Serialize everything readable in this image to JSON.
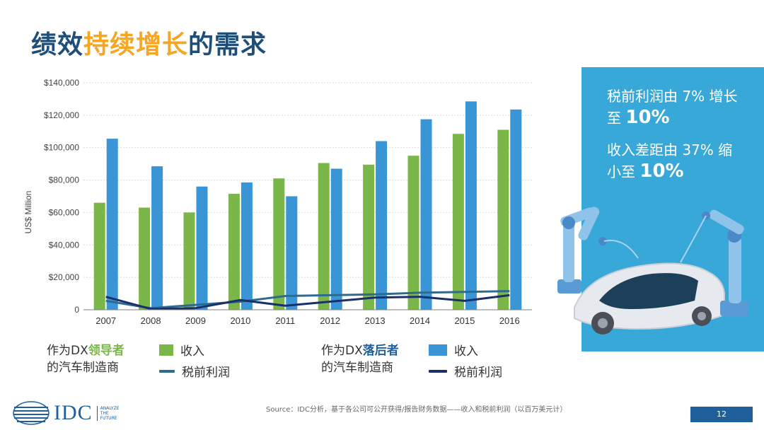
{
  "title": {
    "part1": "绩效",
    "part2": "持续增长",
    "part3": "的需求"
  },
  "chart_data": {
    "type": "bar",
    "ylabel": "US$ Million",
    "ylim": [
      0,
      140000
    ],
    "yticks": [
      "0",
      "$20,000",
      "$40,000",
      "$60,000",
      "$80,000",
      "$100,000",
      "$120,000",
      "$140,000"
    ],
    "categories": [
      "2007",
      "2008",
      "2009",
      "2010",
      "2011",
      "2012",
      "2013",
      "2014",
      "2015",
      "2016"
    ],
    "series": [
      {
        "group": "leader",
        "name": "收入",
        "kind": "bar",
        "color": "#7ab648",
        "values": [
          66000,
          63000,
          60000,
          71500,
          81000,
          90500,
          89500,
          95000,
          108500,
          111000
        ]
      },
      {
        "group": "laggard",
        "name": "收入",
        "kind": "bar",
        "color": "#3a95d6",
        "values": [
          105500,
          88500,
          76000,
          78500,
          70000,
          87000,
          104000,
          117500,
          128500,
          123500
        ]
      },
      {
        "group": "leader",
        "name": "税前利润",
        "kind": "line",
        "color": "#2e6b8e",
        "values": [
          5500,
          1000,
          3000,
          5000,
          8500,
          9000,
          9500,
          10500,
          11000,
          11500
        ]
      },
      {
        "group": "laggard",
        "name": "税前利润",
        "kind": "line",
        "color": "#1a2f6b",
        "values": [
          8000,
          500,
          1000,
          6000,
          2500,
          5000,
          7500,
          8000,
          5500,
          9000
        ]
      }
    ]
  },
  "legend": {
    "leader_label_a": "作为DX",
    "leader_label_b": "领导者",
    "leader_label_c": "的汽车制造商",
    "laggard_label_a": "作为DX",
    "laggard_label_b": "落后者",
    "laggard_label_c": "的汽车制造商",
    "revenue": "收入",
    "profit": "税前利润"
  },
  "panel": {
    "line1": "税前利润由 7% 增长",
    "line1b_prefix": "至 ",
    "line1b_value": "10%",
    "line2": "收入差距由 37% 缩",
    "line2b_prefix": "小至 ",
    "line2b_value": "10%",
    "color": "#37a8d8"
  },
  "footer": {
    "source": "Source：IDC分析，基于各公司可公开获得/报告财务数据——收入和税前利润（以百万美元计）",
    "page": "12",
    "logo": "IDC",
    "tagline": [
      "ANALYZE",
      "THE",
      "FUTURE"
    ]
  }
}
